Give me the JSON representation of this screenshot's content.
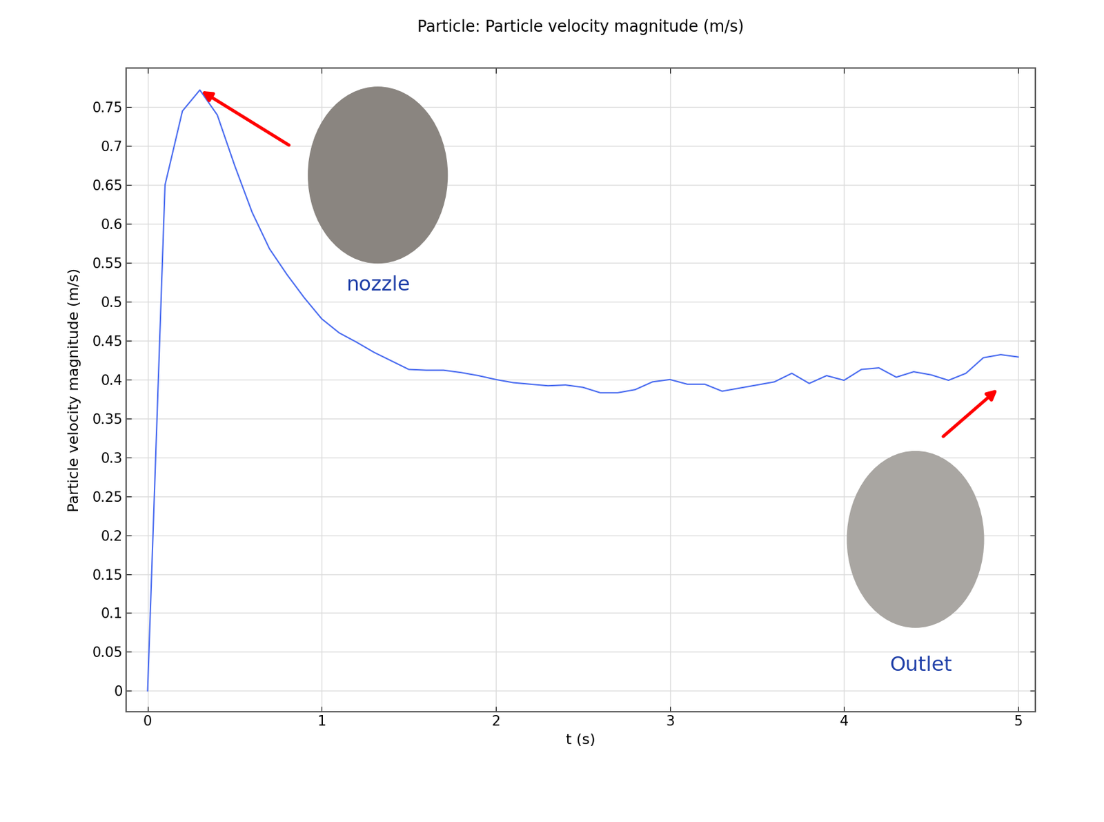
{
  "chart_data": {
    "type": "line",
    "title": "Particle: Particle velocity magnitude (m/s)",
    "x_label": "t (s)",
    "y_label": "Particle velocity magnitude (m/s)",
    "x": [
      0,
      0.1,
      0.2,
      0.3,
      0.4,
      0.5,
      0.6,
      0.7,
      0.8,
      0.9,
      1.0,
      1.1,
      1.2,
      1.3,
      1.4,
      1.5,
      1.6,
      1.7,
      1.8,
      1.9,
      2.0,
      2.1,
      2.2,
      2.3,
      2.4,
      2.5,
      2.6,
      2.7,
      2.8,
      2.9,
      3.0,
      3.1,
      3.2,
      3.3,
      3.4,
      3.5,
      3.6,
      3.7,
      3.8,
      3.9,
      4.0,
      4.1,
      4.2,
      4.3,
      4.4,
      4.5,
      4.6,
      4.7,
      4.8,
      4.9,
      5.0
    ],
    "values": [
      0,
      0.65,
      0.745,
      0.772,
      0.74,
      0.675,
      0.615,
      0.568,
      0.535,
      0.505,
      0.478,
      0.46,
      0.448,
      0.435,
      0.424,
      0.413,
      0.412,
      0.412,
      0.409,
      0.405,
      0.4,
      0.396,
      0.394,
      0.392,
      0.393,
      0.39,
      0.383,
      0.383,
      0.387,
      0.397,
      0.4,
      0.394,
      0.394,
      0.385,
      0.389,
      0.393,
      0.397,
      0.408,
      0.395,
      0.405,
      0.399,
      0.413,
      0.415,
      0.403,
      0.41,
      0.406,
      0.399,
      0.408,
      0.428,
      0.432,
      0.429
    ],
    "color": "#4a6cf0",
    "xlim": [
      -0.125,
      5.1
    ],
    "ylim": [
      -0.027,
      0.8
    ],
    "xticks": [
      0,
      1,
      2,
      3,
      4,
      5
    ],
    "yticks": [
      0,
      0.05,
      0.1,
      0.15,
      0.2,
      0.25,
      0.3,
      0.35,
      0.4,
      0.45,
      0.5,
      0.55,
      0.6,
      0.65,
      0.7,
      0.75
    ],
    "grid": true,
    "annotations": [
      "nozzle",
      "Outlet"
    ]
  }
}
